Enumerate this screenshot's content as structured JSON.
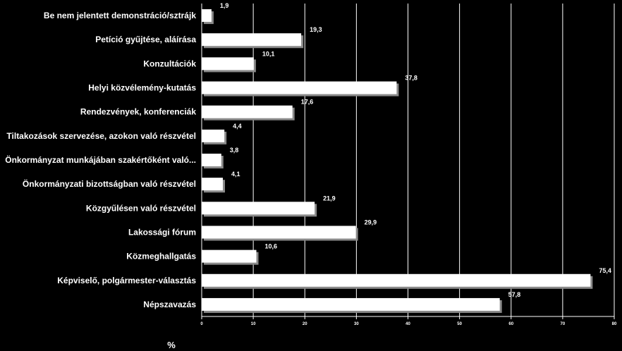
{
  "chart_data": {
    "type": "bar",
    "orientation": "horizontal",
    "categories": [
      "Be nem jelentett demonstráció/sztrájk",
      "Petíció gyűjtése, aláírása",
      "Konzultációk",
      "Helyi közvélemény-kutatás",
      "Rendezvények, konferenciák",
      "Tiltakozások szervezése, azokon való részvétel",
      "Önkormányzat munkájában szakértőként való...",
      "Önkormányzati bizottságban való részvétel",
      "Közgyűlésen való részvétel",
      "Lakossági fórum",
      "Közmeghallgatás",
      "Képviselő, polgármester-választás",
      "Népszavazás"
    ],
    "values": [
      1.9,
      19.3,
      10.1,
      37.8,
      17.6,
      4.4,
      3.8,
      4.1,
      21.9,
      29.9,
      10.6,
      75.4,
      57.8
    ],
    "value_labels": [
      "1,9",
      "19,3",
      "10,1",
      "37,8",
      "17,6",
      "4,4",
      "3,8",
      "4,1",
      "21,9",
      "29,9",
      "10,6",
      "75,4",
      "57,8"
    ],
    "xlabel": "%",
    "xlim": [
      0,
      80
    ],
    "xticks": [
      "0",
      "10",
      "20",
      "30",
      "40",
      "50",
      "60",
      "70",
      "80"
    ],
    "grid": true,
    "colors": {
      "background": "#000000",
      "bar": "#ffffff",
      "text": "#ffffff",
      "grid": "#ffffff"
    }
  }
}
